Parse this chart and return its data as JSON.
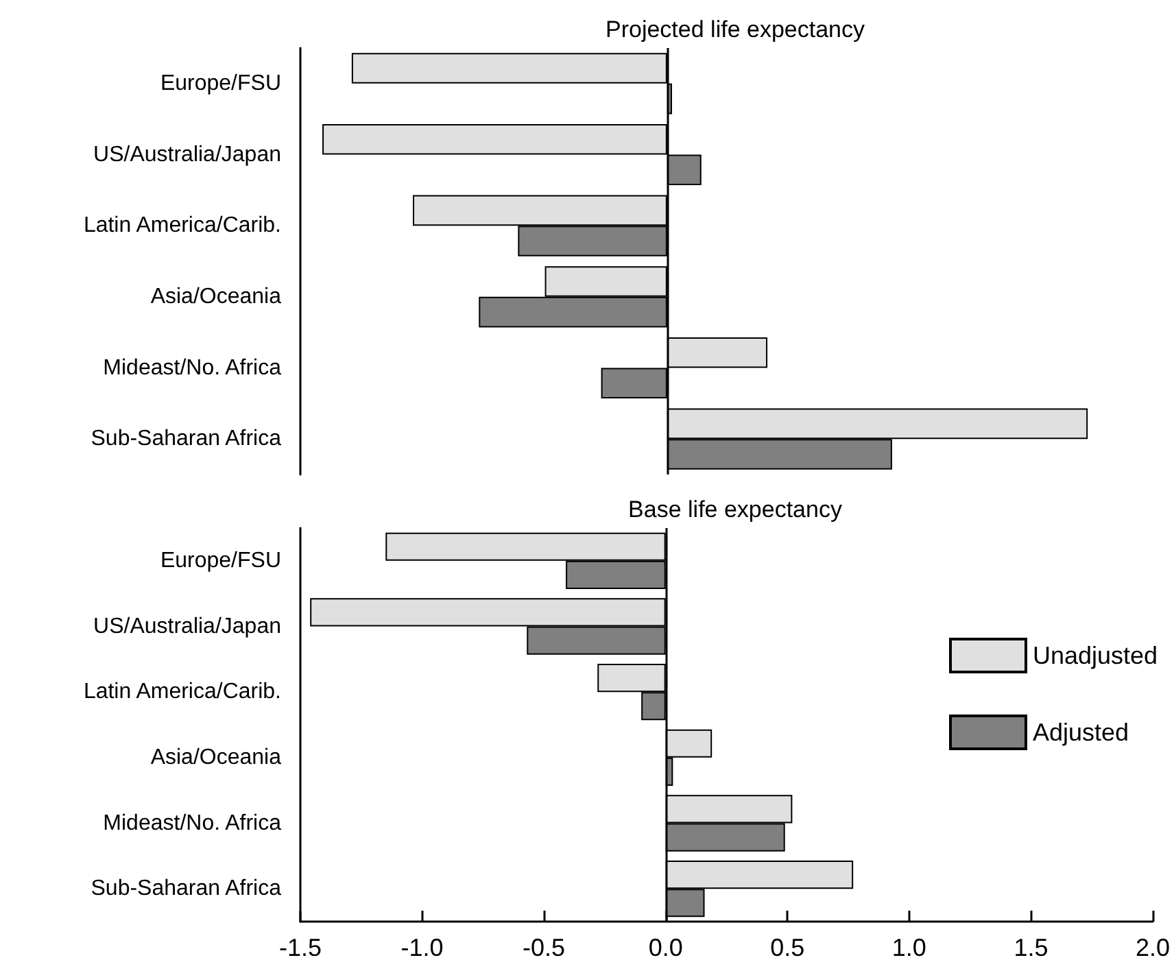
{
  "chart_data": [
    {
      "type": "bar",
      "orientation": "horizontal",
      "title": "Projected life expectancy",
      "categories": [
        "Europe/FSU",
        "US/Australia/Japan",
        "Latin America/Carib.",
        "Asia/Oceania",
        "Mideast/No. Africa",
        "Sub-Saharan Africa"
      ],
      "series": [
        {
          "color": "#e0e0e0",
          "values": [
            -1.29,
            -1.41,
            -1.04,
            -0.5,
            0.41,
            1.72
          ]
        },
        {
          "color": "#808080",
          "values": [
            0.02,
            0.14,
            -0.61,
            -0.77,
            -0.27,
            0.92
          ]
        }
      ],
      "xlim": [
        -1.5,
        2.0
      ],
      "xticks": [
        -1.5,
        -1,
        -0.5,
        0,
        0.5,
        1,
        1.5,
        2
      ],
      "tick_labels": "y",
      "ref_lines": [
        {
          "axis": "x",
          "value": 0,
          "color": "#000000"
        }
      ]
    },
    {
      "type": "bar",
      "orientation": "horizontal",
      "title": "Base life expectancy",
      "categories": [
        "Europe/FSU",
        "US/Australia/Japan",
        "Latin America/Carib.",
        "Asia/Oceania",
        "Mideast/No. Africa",
        "Sub-Saharan Africa"
      ],
      "series": [
        {
          "name": "Unadjusted",
          "color": "#e0e0e0",
          "values": [
            -1.15,
            -1.46,
            -0.28,
            0.19,
            0.52,
            0.77
          ]
        },
        {
          "name": "Adjusted",
          "color": "#808080",
          "values": [
            -0.41,
            -0.57,
            -0.1,
            0.03,
            0.49,
            0.16
          ]
        }
      ],
      "xlim": [
        -1.5,
        2.0
      ],
      "xticks": [
        -1.5,
        {
          "value": -1,
          "label": "-1.0"
        },
        -0.5,
        {
          "value": 0,
          "label": "0.0"
        },
        0.5,
        {
          "value": 1,
          "label": "1.0"
        },
        1.5,
        {
          "value": 2,
          "label": "2.0"
        }
      ],
      "ref_lines": [
        {
          "axis": "x",
          "value": 0,
          "color": "#000000"
        }
      ],
      "legend": "right"
    }
  ]
}
